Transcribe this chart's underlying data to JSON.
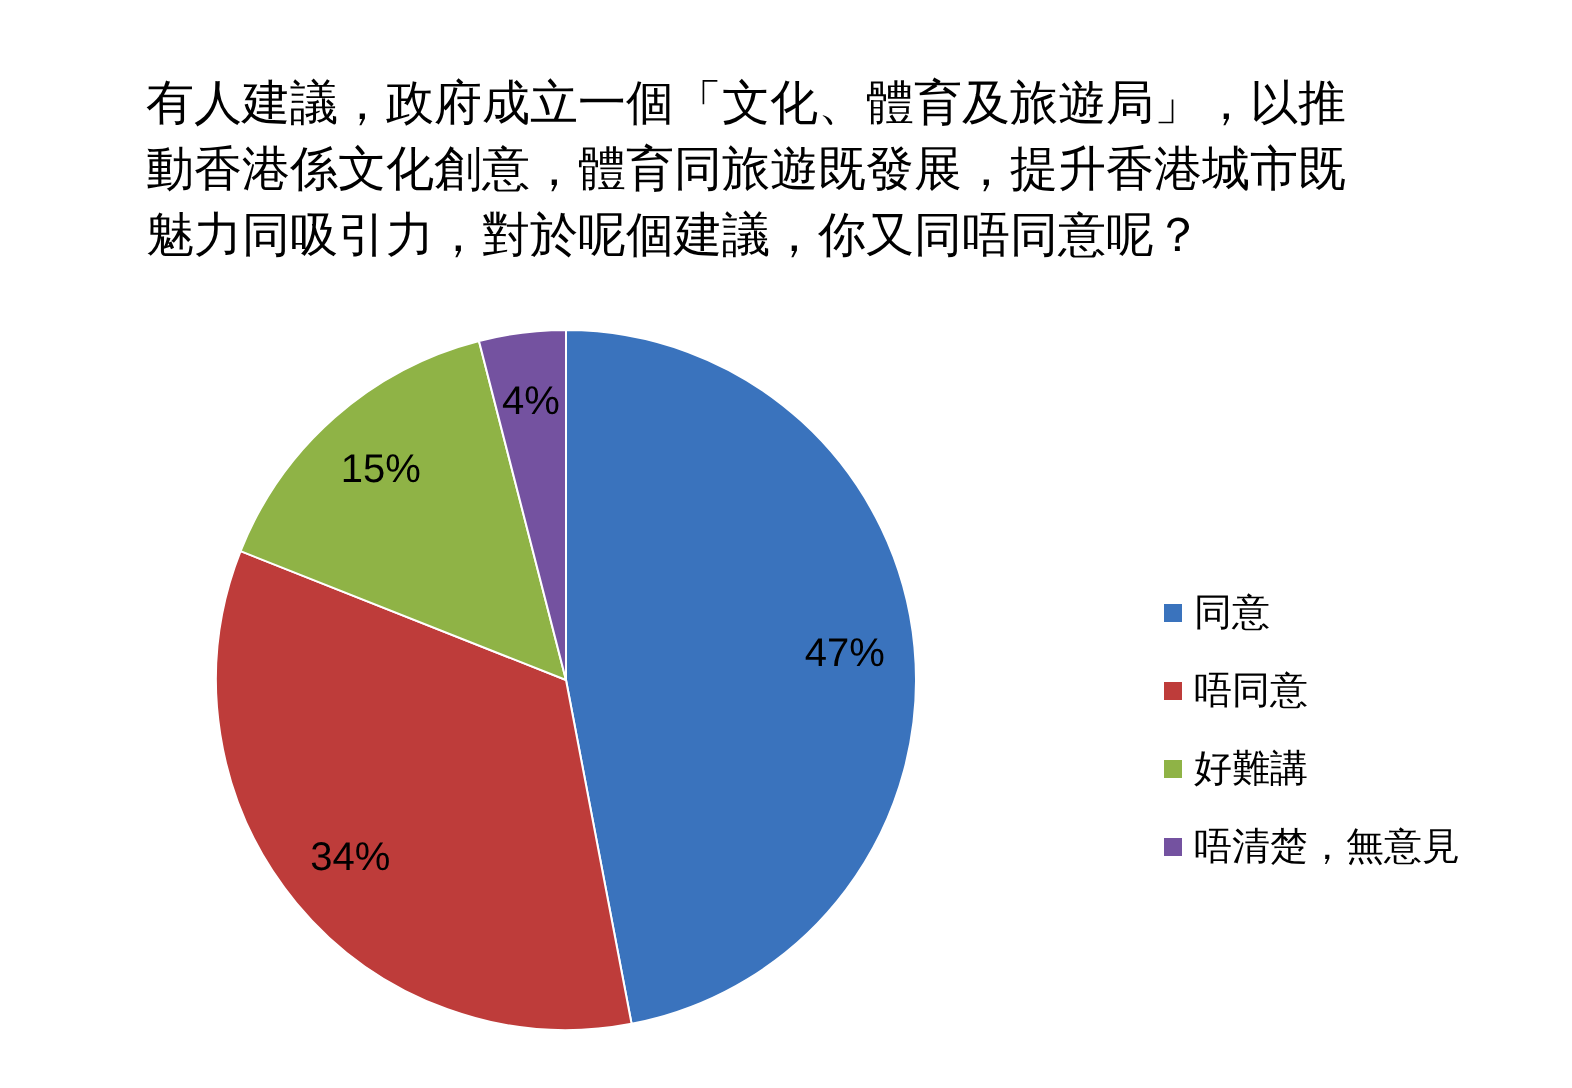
{
  "chart_data": {
    "type": "pie",
    "title": "有人建議，政府成立一個「文化、體育及旅遊局」，以推動香港係文化創意，體育同旅遊既發展，提升香港城市既魅力同吸引力，對於呢個建議，你又同唔同意呢？",
    "categories": [
      "同意",
      "唔同意",
      "好難講",
      "唔清楚，無意見"
    ],
    "values": [
      47,
      34,
      15,
      4
    ],
    "colors": [
      "#3a73bd",
      "#be3c3a",
      "#8fb346",
      "#7452a0"
    ],
    "value_labels": [
      "47%",
      "34%",
      "15%",
      "4%"
    ],
    "legend": "right"
  }
}
